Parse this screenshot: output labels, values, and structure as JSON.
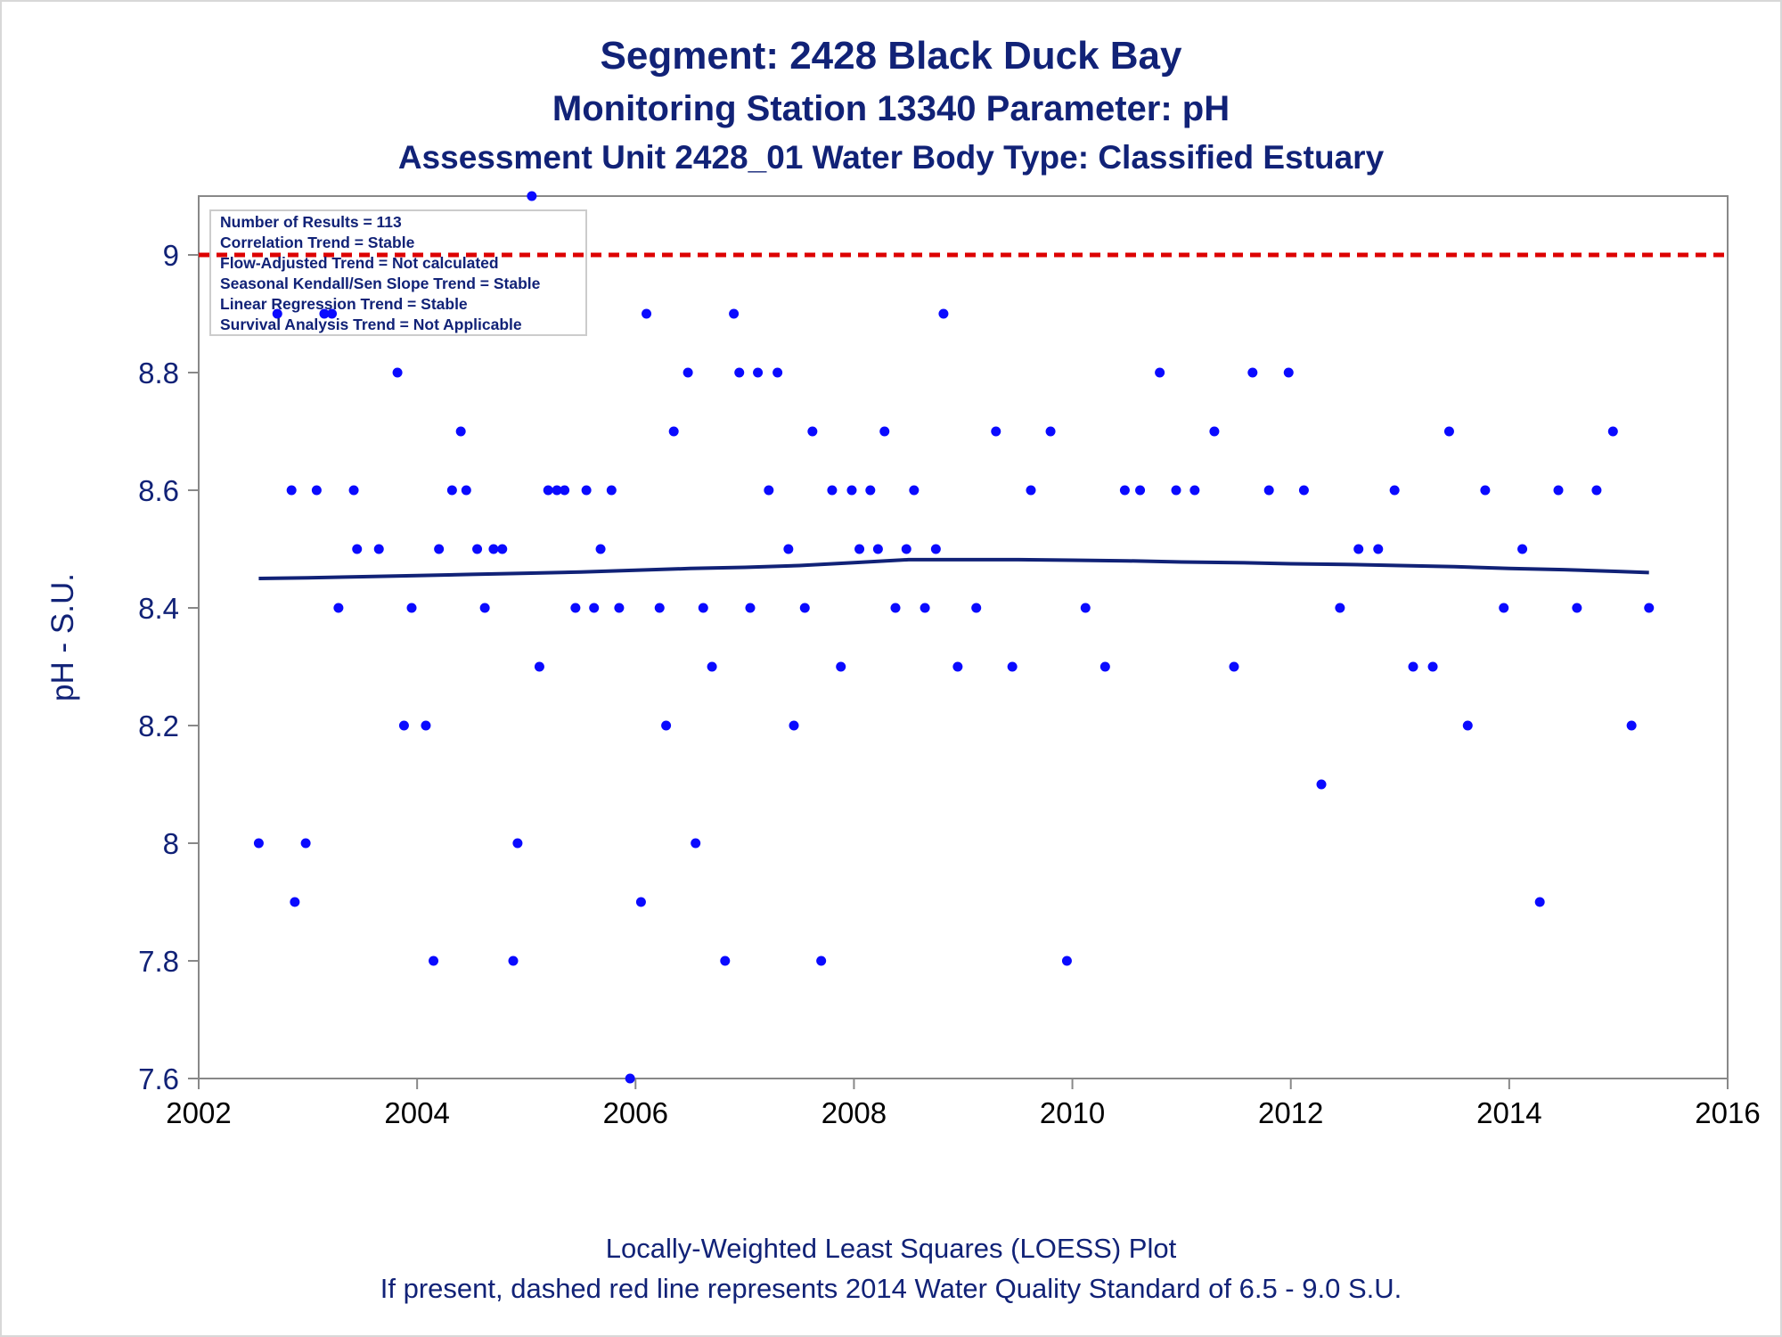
{
  "titles": {
    "line1": "Segment: 2428  Black Duck Bay",
    "line2": "Monitoring Station 13340 Parameter: pH",
    "line3": "Assessment Unit 2428_01   Water Body Type: Classified Estuary"
  },
  "footnotes": {
    "line1": "Locally-Weighted Least Squares (LOESS) Plot",
    "line2": "If present, dashed red line represents 2014 Water Quality Standard of 6.5 - 9.0 S.U."
  },
  "legend_box": {
    "lines": [
      "Number of Results = 113",
      "Correlation Trend = Stable",
      "Flow-Adjusted Trend = Not calculated",
      "Seasonal Kendall/Sen Slope Trend = Stable",
      "Linear Regression Trend = Stable",
      "Survival Analysis Trend = Not Applicable"
    ]
  },
  "colors": {
    "title": "#112277",
    "points": "#0a0aff",
    "loess": "#112277",
    "standard_line": "#dd0000",
    "axis": "#888888"
  },
  "chart_data": {
    "type": "scatter",
    "xlabel": "",
    "ylabel": "pH - S.U.",
    "xlim": [
      2002,
      2016
    ],
    "ylim": [
      7.6,
      9.1
    ],
    "xticks": [
      2002,
      2004,
      2006,
      2008,
      2010,
      2012,
      2014,
      2016
    ],
    "yticks": [
      7.6,
      7.8,
      8.0,
      8.2,
      8.4,
      8.6,
      8.8,
      9.0
    ],
    "ytick_labels": [
      "7.6",
      "7.8",
      "8",
      "8.2",
      "8.4",
      "8.6",
      "8.8",
      "9"
    ],
    "grid": false,
    "reference_line": {
      "y": 9.0,
      "style": "dashed"
    },
    "series": [
      {
        "kind": "points",
        "points": [
          [
            2002.55,
            8.0
          ],
          [
            2002.72,
            8.9
          ],
          [
            2002.85,
            8.6
          ],
          [
            2002.88,
            7.9
          ],
          [
            2002.98,
            8.0
          ],
          [
            2003.08,
            8.6
          ],
          [
            2003.15,
            8.9
          ],
          [
            2003.22,
            8.9
          ],
          [
            2003.28,
            8.4
          ],
          [
            2003.42,
            8.6
          ],
          [
            2003.45,
            8.5
          ],
          [
            2003.65,
            8.5
          ],
          [
            2003.82,
            8.8
          ],
          [
            2003.88,
            8.2
          ],
          [
            2003.95,
            8.4
          ],
          [
            2004.08,
            8.2
          ],
          [
            2004.15,
            7.8
          ],
          [
            2004.2,
            8.5
          ],
          [
            2004.32,
            8.6
          ],
          [
            2004.4,
            8.7
          ],
          [
            2004.45,
            8.6
          ],
          [
            2004.55,
            8.5
          ],
          [
            2004.62,
            8.4
          ],
          [
            2004.7,
            8.5
          ],
          [
            2004.78,
            8.5
          ],
          [
            2004.88,
            7.8
          ],
          [
            2004.92,
            8.0
          ],
          [
            2005.05,
            9.1
          ],
          [
            2005.12,
            8.3
          ],
          [
            2005.2,
            8.6
          ],
          [
            2005.28,
            8.6
          ],
          [
            2005.35,
            8.6
          ],
          [
            2005.45,
            8.4
          ],
          [
            2005.55,
            8.6
          ],
          [
            2005.62,
            8.4
          ],
          [
            2005.68,
            8.5
          ],
          [
            2005.78,
            8.6
          ],
          [
            2005.85,
            8.4
          ],
          [
            2005.95,
            7.6
          ],
          [
            2006.05,
            7.9
          ],
          [
            2006.1,
            8.9
          ],
          [
            2006.22,
            8.4
          ],
          [
            2006.28,
            8.2
          ],
          [
            2006.35,
            8.7
          ],
          [
            2006.48,
            8.8
          ],
          [
            2006.55,
            8.0
          ],
          [
            2006.62,
            8.4
          ],
          [
            2006.7,
            8.3
          ],
          [
            2006.82,
            7.8
          ],
          [
            2006.9,
            8.9
          ],
          [
            2006.95,
            8.8
          ],
          [
            2007.05,
            8.4
          ],
          [
            2007.12,
            8.8
          ],
          [
            2007.22,
            8.6
          ],
          [
            2007.3,
            8.8
          ],
          [
            2007.4,
            8.5
          ],
          [
            2007.45,
            8.2
          ],
          [
            2007.55,
            8.4
          ],
          [
            2007.62,
            8.7
          ],
          [
            2007.7,
            7.8
          ],
          [
            2007.8,
            8.6
          ],
          [
            2007.88,
            8.3
          ],
          [
            2007.98,
            8.6
          ],
          [
            2008.05,
            8.5
          ],
          [
            2008.15,
            8.6
          ],
          [
            2008.22,
            8.5
          ],
          [
            2008.28,
            8.7
          ],
          [
            2008.38,
            8.4
          ],
          [
            2008.48,
            8.5
          ],
          [
            2008.55,
            8.6
          ],
          [
            2008.65,
            8.4
          ],
          [
            2008.75,
            8.5
          ],
          [
            2008.82,
            8.9
          ],
          [
            2008.95,
            8.3
          ],
          [
            2009.12,
            8.4
          ],
          [
            2009.3,
            8.7
          ],
          [
            2009.45,
            8.3
          ],
          [
            2009.62,
            8.6
          ],
          [
            2009.8,
            8.7
          ],
          [
            2009.95,
            7.8
          ],
          [
            2010.12,
            8.4
          ],
          [
            2010.3,
            8.3
          ],
          [
            2010.48,
            8.6
          ],
          [
            2010.62,
            8.6
          ],
          [
            2010.8,
            8.8
          ],
          [
            2010.95,
            8.6
          ],
          [
            2011.12,
            8.6
          ],
          [
            2011.3,
            8.7
          ],
          [
            2011.48,
            8.3
          ],
          [
            2011.65,
            8.8
          ],
          [
            2011.8,
            8.6
          ],
          [
            2011.98,
            8.8
          ],
          [
            2012.12,
            8.6
          ],
          [
            2012.28,
            8.1
          ],
          [
            2012.45,
            8.4
          ],
          [
            2012.62,
            8.5
          ],
          [
            2012.8,
            8.5
          ],
          [
            2012.95,
            8.6
          ],
          [
            2013.12,
            8.3
          ],
          [
            2013.3,
            8.3
          ],
          [
            2013.45,
            8.7
          ],
          [
            2013.62,
            8.2
          ],
          [
            2013.78,
            8.6
          ],
          [
            2013.95,
            8.4
          ],
          [
            2014.12,
            8.5
          ],
          [
            2014.28,
            7.9
          ],
          [
            2014.45,
            8.6
          ],
          [
            2014.62,
            8.4
          ],
          [
            2014.8,
            8.6
          ],
          [
            2014.95,
            8.7
          ],
          [
            2015.12,
            8.2
          ],
          [
            2015.28,
            8.4
          ]
        ]
      },
      {
        "kind": "loess",
        "points": [
          [
            2002.55,
            8.45
          ],
          [
            2003.0,
            8.451
          ],
          [
            2003.5,
            8.453
          ],
          [
            2004.0,
            8.455
          ],
          [
            2004.5,
            8.457
          ],
          [
            2005.0,
            8.459
          ],
          [
            2005.5,
            8.461
          ],
          [
            2006.0,
            8.464
          ],
          [
            2006.5,
            8.467
          ],
          [
            2007.0,
            8.469
          ],
          [
            2007.5,
            8.472
          ],
          [
            2008.0,
            8.477
          ],
          [
            2008.5,
            8.482
          ],
          [
            2009.0,
            8.482
          ],
          [
            2009.5,
            8.482
          ],
          [
            2010.0,
            8.481
          ],
          [
            2010.5,
            8.48
          ],
          [
            2011.0,
            8.478
          ],
          [
            2011.5,
            8.477
          ],
          [
            2012.0,
            8.475
          ],
          [
            2012.5,
            8.474
          ],
          [
            2013.0,
            8.472
          ],
          [
            2013.5,
            8.47
          ],
          [
            2014.0,
            8.467
          ],
          [
            2014.5,
            8.465
          ],
          [
            2015.0,
            8.462
          ],
          [
            2015.28,
            8.46
          ]
        ]
      }
    ]
  }
}
